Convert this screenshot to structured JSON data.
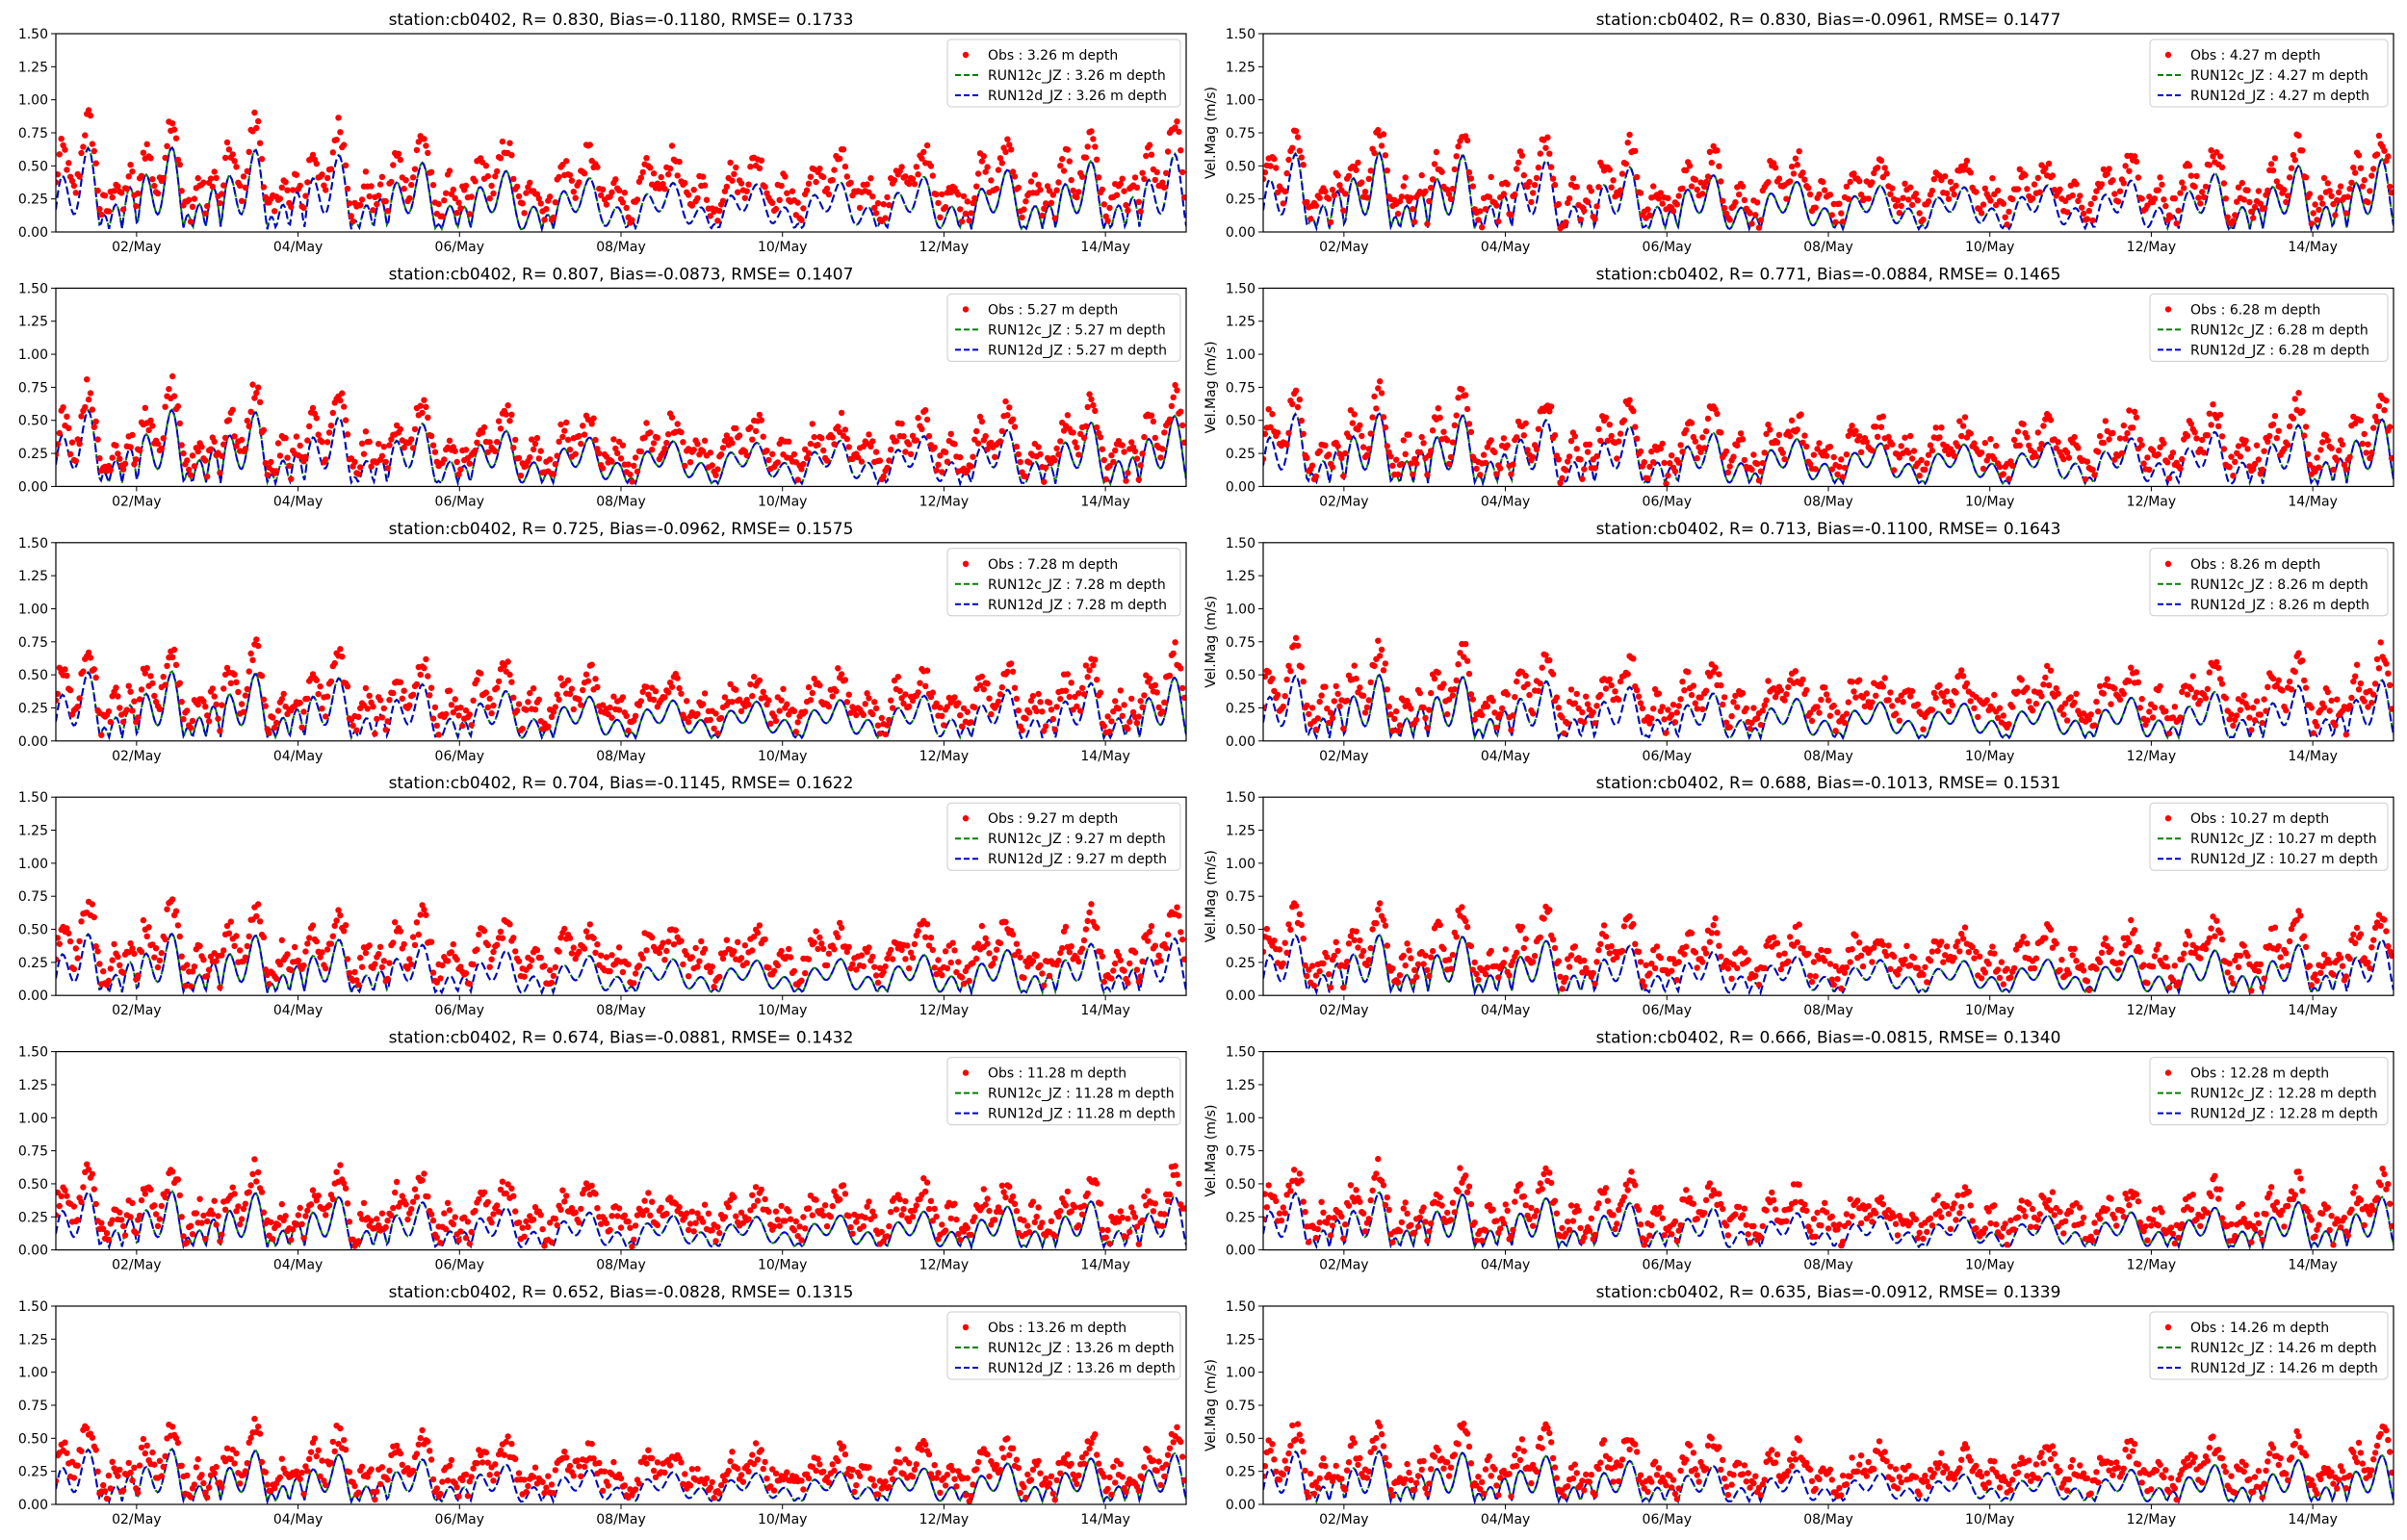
{
  "chart_data": [
    {
      "type": "scatter",
      "title": "station:cb0402, R= 0.830, Bias=-0.1180, RMSE= 0.1733",
      "ylabel": "",
      "ylim": [
        0,
        1.5
      ],
      "yticks": [
        "0.00",
        "0.25",
        "0.50",
        "0.75",
        "1.00",
        "1.25",
        "1.50"
      ],
      "xticks": [
        "02/May",
        "04/May",
        "06/May",
        "08/May",
        "10/May",
        "12/May",
        "14/May"
      ],
      "legend_position": "upper right",
      "series": [
        {
          "name": "Obs : 3.26 m depth",
          "style": "dots",
          "color": "#ff0000",
          "base": 0.35,
          "amp": 0.55,
          "bias": 0.118
        },
        {
          "name": "RUN12c_JZ : 3.26 m depth",
          "style": "dashed",
          "color": "#008000",
          "base": 0.25,
          "amp": 0.5
        },
        {
          "name": "RUN12d_JZ : 3.26 m depth",
          "style": "dashed",
          "color": "#0000cc",
          "base": 0.25,
          "amp": 0.5
        }
      ]
    },
    {
      "type": "scatter",
      "title": "station:cb0402, R= 0.830, Bias=-0.0961, RMSE= 0.1477",
      "ylabel": "Vel.Mag (m/s)",
      "ylim": [
        0,
        1.5
      ],
      "yticks": [
        "0.00",
        "0.25",
        "0.50",
        "0.75",
        "1.00",
        "1.25",
        "1.50"
      ],
      "xticks": [
        "02/May",
        "04/May",
        "06/May",
        "08/May",
        "10/May",
        "12/May",
        "14/May"
      ],
      "legend_position": "upper right",
      "series": [
        {
          "name": "Obs : 4.27 m depth",
          "style": "dots",
          "color": "#ff0000",
          "base": 0.33,
          "amp": 0.5,
          "bias": 0.096
        },
        {
          "name": "RUN12c_JZ : 4.27 m depth",
          "style": "dashed",
          "color": "#008000",
          "base": 0.24,
          "amp": 0.46
        },
        {
          "name": "RUN12d_JZ : 4.27 m depth",
          "style": "dashed",
          "color": "#0000cc",
          "base": 0.24,
          "amp": 0.46
        }
      ]
    },
    {
      "type": "scatter",
      "title": "station:cb0402, R= 0.807, Bias=-0.0873, RMSE= 0.1407",
      "ylabel": "",
      "ylim": [
        0,
        1.5
      ],
      "yticks": [
        "0.00",
        "0.25",
        "0.50",
        "0.75",
        "1.00",
        "1.25",
        "1.50"
      ],
      "xticks": [
        "02/May",
        "04/May",
        "06/May",
        "08/May",
        "10/May",
        "12/May",
        "14/May"
      ],
      "legend_position": "upper right",
      "series": [
        {
          "name": "Obs : 5.27 m depth",
          "style": "dots",
          "color": "#ff0000",
          "base": 0.32,
          "amp": 0.48,
          "bias": 0.087
        },
        {
          "name": "RUN12c_JZ : 5.27 m depth",
          "style": "dashed",
          "color": "#008000",
          "base": 0.24,
          "amp": 0.44
        },
        {
          "name": "RUN12d_JZ : 5.27 m depth",
          "style": "dashed",
          "color": "#0000cc",
          "base": 0.24,
          "amp": 0.44
        }
      ]
    },
    {
      "type": "scatter",
      "title": "station:cb0402, R= 0.771, Bias=-0.0884, RMSE= 0.1465",
      "ylabel": "Vel.Mag (m/s)",
      "ylim": [
        0,
        1.5
      ],
      "yticks": [
        "0.00",
        "0.25",
        "0.50",
        "0.75",
        "1.00",
        "1.25",
        "1.50"
      ],
      "xticks": [
        "02/May",
        "04/May",
        "06/May",
        "08/May",
        "10/May",
        "12/May",
        "14/May"
      ],
      "legend_position": "upper right",
      "series": [
        {
          "name": "Obs : 6.28 m depth",
          "style": "dots",
          "color": "#ff0000",
          "base": 0.31,
          "amp": 0.46,
          "bias": 0.088
        },
        {
          "name": "RUN12c_JZ : 6.28 m depth",
          "style": "dashed",
          "color": "#008000",
          "base": 0.23,
          "amp": 0.42
        },
        {
          "name": "RUN12d_JZ : 6.28 m depth",
          "style": "dashed",
          "color": "#0000cc",
          "base": 0.23,
          "amp": 0.42
        }
      ]
    },
    {
      "type": "scatter",
      "title": "station:cb0402, R= 0.725, Bias=-0.0962, RMSE= 0.1575",
      "ylabel": "",
      "ylim": [
        0,
        1.5
      ],
      "yticks": [
        "0.00",
        "0.25",
        "0.50",
        "0.75",
        "1.00",
        "1.25",
        "1.50"
      ],
      "xticks": [
        "02/May",
        "04/May",
        "06/May",
        "08/May",
        "10/May",
        "12/May",
        "14/May"
      ],
      "legend_position": "upper right",
      "series": [
        {
          "name": "Obs : 7.28 m depth",
          "style": "dots",
          "color": "#ff0000",
          "base": 0.3,
          "amp": 0.44,
          "bias": 0.096
        },
        {
          "name": "RUN12c_JZ : 7.28 m depth",
          "style": "dashed",
          "color": "#008000",
          "base": 0.21,
          "amp": 0.4
        },
        {
          "name": "RUN12d_JZ : 7.28 m depth",
          "style": "dashed",
          "color": "#0000cc",
          "base": 0.21,
          "amp": 0.4
        }
      ]
    },
    {
      "type": "scatter",
      "title": "station:cb0402, R= 0.713, Bias=-0.1100, RMSE= 0.1643",
      "ylabel": "Vel.Mag (m/s)",
      "ylim": [
        0,
        1.5
      ],
      "yticks": [
        "0.00",
        "0.25",
        "0.50",
        "0.75",
        "1.00",
        "1.25",
        "1.50"
      ],
      "xticks": [
        "02/May",
        "04/May",
        "06/May",
        "08/May",
        "10/May",
        "12/May",
        "14/May"
      ],
      "legend_position": "upper right",
      "series": [
        {
          "name": "Obs : 8.26 m depth",
          "style": "dots",
          "color": "#ff0000",
          "base": 0.3,
          "amp": 0.43,
          "bias": 0.11
        },
        {
          "name": "RUN12c_JZ : 8.26 m depth",
          "style": "dashed",
          "color": "#008000",
          "base": 0.2,
          "amp": 0.38
        },
        {
          "name": "RUN12d_JZ : 8.26 m depth",
          "style": "dashed",
          "color": "#0000cc",
          "base": 0.2,
          "amp": 0.38
        }
      ]
    },
    {
      "type": "scatter",
      "title": "station:cb0402, R= 0.704, Bias=-0.1145, RMSE= 0.1622",
      "ylabel": "",
      "ylim": [
        0,
        1.5
      ],
      "yticks": [
        "0.00",
        "0.25",
        "0.50",
        "0.75",
        "1.00",
        "1.25",
        "1.50"
      ],
      "xticks": [
        "02/May",
        "04/May",
        "06/May",
        "08/May",
        "10/May",
        "12/May",
        "14/May"
      ],
      "legend_position": "upper right",
      "series": [
        {
          "name": "Obs : 9.27 m depth",
          "style": "dots",
          "color": "#ff0000",
          "base": 0.29,
          "amp": 0.42,
          "bias": 0.114
        },
        {
          "name": "RUN12c_JZ : 9.27 m depth",
          "style": "dashed",
          "color": "#008000",
          "base": 0.18,
          "amp": 0.36
        },
        {
          "name": "RUN12d_JZ : 9.27 m depth",
          "style": "dashed",
          "color": "#0000cc",
          "base": 0.18,
          "amp": 0.36
        }
      ]
    },
    {
      "type": "scatter",
      "title": "station:cb0402, R= 0.688, Bias=-0.1013, RMSE= 0.1531",
      "ylabel": "Vel.Mag (m/s)",
      "ylim": [
        0,
        1.5
      ],
      "yticks": [
        "0.00",
        "0.25",
        "0.50",
        "0.75",
        "1.00",
        "1.25",
        "1.50"
      ],
      "xticks": [
        "02/May",
        "04/May",
        "06/May",
        "08/May",
        "10/May",
        "12/May",
        "14/May"
      ],
      "legend_position": "upper right",
      "series": [
        {
          "name": "Obs : 10.27 m depth",
          "style": "dots",
          "color": "#ff0000",
          "base": 0.28,
          "amp": 0.4,
          "bias": 0.101
        },
        {
          "name": "RUN12c_JZ : 10.27 m depth",
          "style": "dashed",
          "color": "#008000",
          "base": 0.18,
          "amp": 0.35
        },
        {
          "name": "RUN12d_JZ : 10.27 m depth",
          "style": "dashed",
          "color": "#0000cc",
          "base": 0.18,
          "amp": 0.35
        }
      ]
    },
    {
      "type": "scatter",
      "title": "station:cb0402, R= 0.674, Bias=-0.0881, RMSE= 0.1432",
      "ylabel": "",
      "ylim": [
        0,
        1.5
      ],
      "yticks": [
        "0.00",
        "0.25",
        "0.50",
        "0.75",
        "1.00",
        "1.25",
        "1.50"
      ],
      "xticks": [
        "02/May",
        "04/May",
        "06/May",
        "08/May",
        "10/May",
        "12/May",
        "14/May"
      ],
      "legend_position": "upper right",
      "series": [
        {
          "name": "Obs : 11.28 m depth",
          "style": "dots",
          "color": "#ff0000",
          "base": 0.27,
          "amp": 0.38,
          "bias": 0.088
        },
        {
          "name": "RUN12c_JZ : 11.28 m depth",
          "style": "dashed",
          "color": "#008000",
          "base": 0.17,
          "amp": 0.34
        },
        {
          "name": "RUN12d_JZ : 11.28 m depth",
          "style": "dashed",
          "color": "#0000cc",
          "base": 0.17,
          "amp": 0.34
        }
      ]
    },
    {
      "type": "scatter",
      "title": "station:cb0402, R= 0.666, Bias=-0.0815, RMSE= 0.1340",
      "ylabel": "Vel.Mag (m/s)",
      "ylim": [
        0,
        1.5
      ],
      "yticks": [
        "0.00",
        "0.25",
        "0.50",
        "0.75",
        "1.00",
        "1.25",
        "1.50"
      ],
      "xticks": [
        "02/May",
        "04/May",
        "06/May",
        "08/May",
        "10/May",
        "12/May",
        "14/May"
      ],
      "legend_position": "upper right",
      "series": [
        {
          "name": "Obs : 12.28 m depth",
          "style": "dots",
          "color": "#ff0000",
          "base": 0.26,
          "amp": 0.37,
          "bias": 0.082
        },
        {
          "name": "RUN12c_JZ : 12.28 m depth",
          "style": "dashed",
          "color": "#008000",
          "base": 0.17,
          "amp": 0.33
        },
        {
          "name": "RUN12d_JZ : 12.28 m depth",
          "style": "dashed",
          "color": "#0000cc",
          "base": 0.17,
          "amp": 0.33
        }
      ]
    },
    {
      "type": "scatter",
      "title": "station:cb0402, R= 0.652, Bias=-0.0828, RMSE= 0.1315",
      "ylabel": "",
      "ylim": [
        0,
        1.5
      ],
      "yticks": [
        "0.00",
        "0.25",
        "0.50",
        "0.75",
        "1.00",
        "1.25",
        "1.50"
      ],
      "xticks": [
        "02/May",
        "04/May",
        "06/May",
        "08/May",
        "10/May",
        "12/May",
        "14/May"
      ],
      "legend_position": "upper right",
      "series": [
        {
          "name": "Obs : 13.26 m depth",
          "style": "dots",
          "color": "#ff0000",
          "base": 0.25,
          "amp": 0.36,
          "bias": 0.083
        },
        {
          "name": "RUN12c_JZ : 13.26 m depth",
          "style": "dashed",
          "color": "#008000",
          "base": 0.16,
          "amp": 0.32
        },
        {
          "name": "RUN12d_JZ : 13.26 m depth",
          "style": "dashed",
          "color": "#0000cc",
          "base": 0.16,
          "amp": 0.32
        }
      ]
    },
    {
      "type": "scatter",
      "title": "station:cb0402, R= 0.635, Bias=-0.0912, RMSE= 0.1339",
      "ylabel": "Vel.Mag (m/s)",
      "ylim": [
        0,
        1.5
      ],
      "yticks": [
        "0.00",
        "0.25",
        "0.50",
        "0.75",
        "1.00",
        "1.25",
        "1.50"
      ],
      "xticks": [
        "02/May",
        "04/May",
        "06/May",
        "08/May",
        "10/May",
        "12/May",
        "14/May"
      ],
      "legend_position": "upper right",
      "series": [
        {
          "name": "Obs : 14.26 m depth",
          "style": "dots",
          "color": "#ff0000",
          "base": 0.24,
          "amp": 0.35,
          "bias": 0.091
        },
        {
          "name": "RUN12c_JZ : 14.26 m depth",
          "style": "dashed",
          "color": "#008000",
          "base": 0.15,
          "amp": 0.31
        },
        {
          "name": "RUN12d_JZ : 14.26 m depth",
          "style": "dashed",
          "color": "#0000cc",
          "base": 0.15,
          "amp": 0.31
        }
      ]
    }
  ]
}
